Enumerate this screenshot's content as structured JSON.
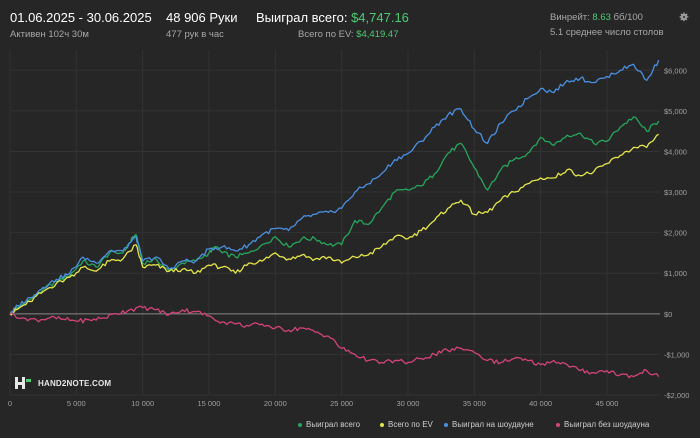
{
  "header": {
    "date_range": "01.06.2025 - 30.06.2025",
    "active_time": "Активен 102ч 30м",
    "hands": "48 906 Руки",
    "hands_per_hour": "477 рук в час",
    "won_total_label": "Выиграл всего: ",
    "won_total_value": "$4,747.16",
    "ev_total_label": "Всего по EV: ",
    "ev_total_value": "$4,419.47",
    "winrate_label": "Винрейт: ",
    "winrate_value": "8.63",
    "winrate_suffix": " бб/100",
    "avg_tables": "5.1 среднее число столов",
    "settings_icon": "gear-icon"
  },
  "logo": {
    "text": "HAND2NOTE.COM",
    "icon": "hand2note-logo-icon"
  },
  "chart_data": {
    "type": "line",
    "xlim": [
      0,
      49000
    ],
    "ylim": [
      -2000,
      6500
    ],
    "x_ticks": [
      0,
      5000,
      10000,
      15000,
      20000,
      25000,
      30000,
      35000,
      40000,
      45000
    ],
    "x_tick_labels": [
      "0",
      "5 000",
      "10 000",
      "15 000",
      "20 000",
      "25 000",
      "30 000",
      "35 000",
      "40 000",
      "45 000"
    ],
    "y_ticks": [
      -2000,
      -1000,
      0,
      1000,
      2000,
      3000,
      4000,
      5000,
      6000
    ],
    "y_tick_labels": [
      "-$2,000",
      "-$1,000",
      "$0",
      "$1,000",
      "$2,000",
      "$3,000",
      "$4,000",
      "$5,000",
      "$6,000"
    ],
    "grid": true,
    "legend_position": "bottom-right",
    "series": [
      {
        "name": "Выиграл всего",
        "color": "#26a65b",
        "points": [
          [
            0,
            0
          ],
          [
            600,
            150
          ],
          [
            1500,
            350
          ],
          [
            2500,
            600
          ],
          [
            3500,
            800
          ],
          [
            4500,
            950
          ],
          [
            5500,
            1300
          ],
          [
            6500,
            1150
          ],
          [
            7500,
            1500
          ],
          [
            8500,
            1500
          ],
          [
            9000,
            1750
          ],
          [
            9500,
            1950
          ],
          [
            10000,
            1250
          ],
          [
            11000,
            1350
          ],
          [
            12000,
            1050
          ],
          [
            13000,
            1250
          ],
          [
            14000,
            1300
          ],
          [
            15000,
            1500
          ],
          [
            15500,
            1650
          ],
          [
            16000,
            1500
          ],
          [
            17000,
            1400
          ],
          [
            18000,
            1500
          ],
          [
            19000,
            1700
          ],
          [
            20000,
            1900
          ],
          [
            21000,
            1650
          ],
          [
            22000,
            1850
          ],
          [
            23000,
            1850
          ],
          [
            24000,
            1700
          ],
          [
            25000,
            1700
          ],
          [
            26000,
            2300
          ],
          [
            27000,
            2200
          ],
          [
            28000,
            2600
          ],
          [
            29000,
            3000
          ],
          [
            30000,
            3050
          ],
          [
            31000,
            3150
          ],
          [
            32000,
            3450
          ],
          [
            33000,
            3950
          ],
          [
            34000,
            4200
          ],
          [
            35000,
            3600
          ],
          [
            36000,
            3050
          ],
          [
            37000,
            3550
          ],
          [
            38000,
            3800
          ],
          [
            39000,
            3950
          ],
          [
            40000,
            4350
          ],
          [
            41000,
            4150
          ],
          [
            42000,
            4400
          ],
          [
            43000,
            4450
          ],
          [
            44000,
            4200
          ],
          [
            45000,
            4250
          ],
          [
            46000,
            4600
          ],
          [
            47000,
            4850
          ],
          [
            48000,
            4500
          ],
          [
            48900,
            4750
          ]
        ]
      },
      {
        "name": "Всего по EV",
        "color": "#e6e64a",
        "points": [
          [
            0,
            0
          ],
          [
            600,
            120
          ],
          [
            1500,
            300
          ],
          [
            2500,
            550
          ],
          [
            3500,
            750
          ],
          [
            4500,
            900
          ],
          [
            5500,
            1150
          ],
          [
            6500,
            1050
          ],
          [
            7500,
            1300
          ],
          [
            8500,
            1350
          ],
          [
            9500,
            1700
          ],
          [
            10000,
            1150
          ],
          [
            11000,
            1200
          ],
          [
            12000,
            1050
          ],
          [
            13000,
            1100
          ],
          [
            14000,
            1000
          ],
          [
            15000,
            1200
          ],
          [
            16000,
            1150
          ],
          [
            17000,
            1000
          ],
          [
            18000,
            1250
          ],
          [
            19000,
            1300
          ],
          [
            20000,
            1500
          ],
          [
            21000,
            1350
          ],
          [
            22000,
            1450
          ],
          [
            23000,
            1350
          ],
          [
            24000,
            1400
          ],
          [
            25000,
            1250
          ],
          [
            26000,
            1400
          ],
          [
            27000,
            1450
          ],
          [
            28000,
            1650
          ],
          [
            29000,
            1900
          ],
          [
            30000,
            1850
          ],
          [
            31000,
            2050
          ],
          [
            32000,
            2300
          ],
          [
            33000,
            2600
          ],
          [
            34000,
            2800
          ],
          [
            35000,
            2450
          ],
          [
            36000,
            2500
          ],
          [
            37000,
            2800
          ],
          [
            38000,
            3000
          ],
          [
            39000,
            3200
          ],
          [
            40000,
            3350
          ],
          [
            41000,
            3350
          ],
          [
            42000,
            3550
          ],
          [
            43000,
            3400
          ],
          [
            44000,
            3500
          ],
          [
            45000,
            3700
          ],
          [
            46000,
            3900
          ],
          [
            47000,
            4100
          ],
          [
            48000,
            4100
          ],
          [
            48900,
            4420
          ]
        ]
      },
      {
        "name": "Выиграл на шоудауне",
        "color": "#4a90e2",
        "points": [
          [
            0,
            0
          ],
          [
            600,
            200
          ],
          [
            1500,
            400
          ],
          [
            2500,
            650
          ],
          [
            3500,
            850
          ],
          [
            4500,
            1000
          ],
          [
            5500,
            1400
          ],
          [
            6500,
            1250
          ],
          [
            7500,
            1550
          ],
          [
            8500,
            1550
          ],
          [
            9500,
            1900
          ],
          [
            10000,
            1300
          ],
          [
            11000,
            1400
          ],
          [
            12000,
            1100
          ],
          [
            13000,
            1300
          ],
          [
            14000,
            1300
          ],
          [
            15000,
            1600
          ],
          [
            16000,
            1650
          ],
          [
            17000,
            1550
          ],
          [
            18000,
            1700
          ],
          [
            19000,
            1950
          ],
          [
            20000,
            2100
          ],
          [
            21000,
            2050
          ],
          [
            22000,
            2350
          ],
          [
            23000,
            2450
          ],
          [
            24000,
            2500
          ],
          [
            25000,
            2600
          ],
          [
            26000,
            3000
          ],
          [
            27000,
            3200
          ],
          [
            28000,
            3450
          ],
          [
            29000,
            3800
          ],
          [
            30000,
            3950
          ],
          [
            31000,
            4250
          ],
          [
            32000,
            4600
          ],
          [
            33000,
            4900
          ],
          [
            34000,
            5050
          ],
          [
            35000,
            4550
          ],
          [
            36000,
            4200
          ],
          [
            37000,
            4700
          ],
          [
            38000,
            5000
          ],
          [
            39000,
            5300
          ],
          [
            40000,
            5550
          ],
          [
            41000,
            5450
          ],
          [
            42000,
            5750
          ],
          [
            43000,
            5800
          ],
          [
            44000,
            5700
          ],
          [
            45000,
            5850
          ],
          [
            46000,
            6000
          ],
          [
            47000,
            6150
          ],
          [
            48000,
            5750
          ],
          [
            48900,
            6250
          ]
        ]
      },
      {
        "name": "Выиграл без шоудауна",
        "color": "#d4437a",
        "points": [
          [
            0,
            0
          ],
          [
            1000,
            -100
          ],
          [
            2000,
            -150
          ],
          [
            3000,
            -100
          ],
          [
            4000,
            -130
          ],
          [
            5000,
            -180
          ],
          [
            6000,
            -150
          ],
          [
            7000,
            -100
          ],
          [
            8000,
            0
          ],
          [
            9000,
            100
          ],
          [
            10000,
            150
          ],
          [
            11000,
            100
          ],
          [
            12000,
            -20
          ],
          [
            13000,
            100
          ],
          [
            14000,
            50
          ],
          [
            15000,
            -50
          ],
          [
            16000,
            -200
          ],
          [
            17000,
            -250
          ],
          [
            18000,
            -300
          ],
          [
            19000,
            -250
          ],
          [
            20000,
            -350
          ],
          [
            21000,
            -400
          ],
          [
            22000,
            -350
          ],
          [
            23000,
            -450
          ],
          [
            24000,
            -550
          ],
          [
            25000,
            -850
          ],
          [
            26000,
            -1000
          ],
          [
            27000,
            -1150
          ],
          [
            28000,
            -1200
          ],
          [
            29000,
            -1150
          ],
          [
            30000,
            -1200
          ],
          [
            31000,
            -1100
          ],
          [
            32000,
            -1000
          ],
          [
            33000,
            -900
          ],
          [
            34000,
            -850
          ],
          [
            35000,
            -950
          ],
          [
            36000,
            -1150
          ],
          [
            37000,
            -1200
          ],
          [
            38000,
            -1100
          ],
          [
            39000,
            -1150
          ],
          [
            40000,
            -1250
          ],
          [
            41000,
            -1150
          ],
          [
            42000,
            -1250
          ],
          [
            43000,
            -1400
          ],
          [
            44000,
            -1450
          ],
          [
            45000,
            -1400
          ],
          [
            46000,
            -1500
          ],
          [
            47000,
            -1550
          ],
          [
            48000,
            -1400
          ],
          [
            48900,
            -1550
          ]
        ]
      }
    ]
  }
}
